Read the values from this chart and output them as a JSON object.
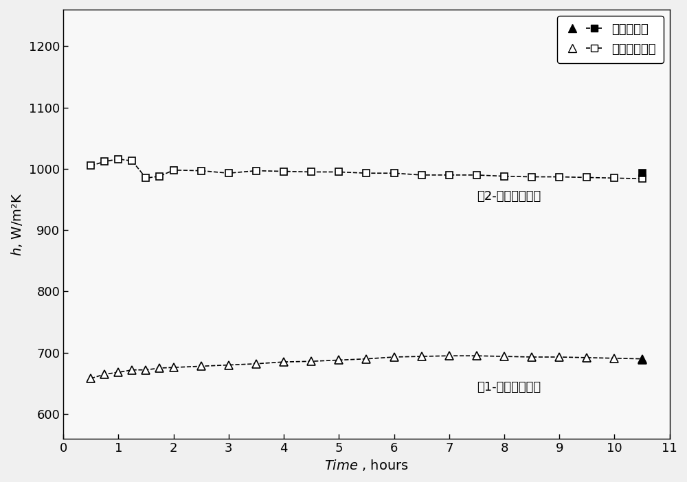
{
  "title": "",
  "xlabel_italic": "Time",
  "xlabel_unit": " , hours",
  "ylabel": "h, W/m²K",
  "xlim": [
    0,
    11
  ],
  "ylim": [
    560,
    1260
  ],
  "xticks": [
    0,
    1,
    2,
    3,
    4,
    5,
    6,
    7,
    8,
    9,
    10,
    11
  ],
  "yticks": [
    600,
    700,
    800,
    900,
    1000,
    1100,
    1200
  ],
  "background": "#f5f5f5",
  "series1_label": "稳态测量法",
  "series2_label": "非稳态测量法",
  "annotation1": "板2-热管换热系数",
  "annotation2": "板1-热管换热系数",
  "plate2_nonsteady_x": [
    0.5,
    0.75,
    1.0,
    1.25,
    1.5,
    1.75,
    2.0,
    2.5,
    3.0,
    3.5,
    4.0,
    4.5,
    5.0,
    5.5,
    6.0,
    6.5,
    7.0,
    7.5,
    8.0,
    8.5,
    9.0,
    9.5,
    10.0,
    10.5
  ],
  "plate2_nonsteady_y": [
    1005,
    1012,
    1016,
    1013,
    985,
    988,
    998,
    997,
    993,
    997,
    996,
    995,
    995,
    993,
    993,
    990,
    990,
    990,
    988,
    987,
    987,
    986,
    985,
    984
  ],
  "plate2_steady_x": [
    10.5
  ],
  "plate2_steady_y": [
    993
  ],
  "plate1_nonsteady_x": [
    0.5,
    0.75,
    1.0,
    1.25,
    1.5,
    1.75,
    2.0,
    2.5,
    3.0,
    3.5,
    4.0,
    4.5,
    5.0,
    5.5,
    6.0,
    6.5,
    7.0,
    7.5,
    8.0,
    8.5,
    9.0,
    9.5,
    10.0,
    10.5
  ],
  "plate1_nonsteady_y": [
    658,
    665,
    668,
    672,
    672,
    675,
    676,
    678,
    680,
    682,
    685,
    686,
    688,
    690,
    693,
    694,
    695,
    695,
    694,
    693,
    693,
    692,
    691,
    690
  ],
  "plate1_steady_x": [
    10.5
  ],
  "plate1_steady_y": [
    688
  ],
  "color_black": "#000000",
  "color_gray": "#888888",
  "linewidth": 1.2,
  "markersize_triangle": 8,
  "markersize_square": 7
}
